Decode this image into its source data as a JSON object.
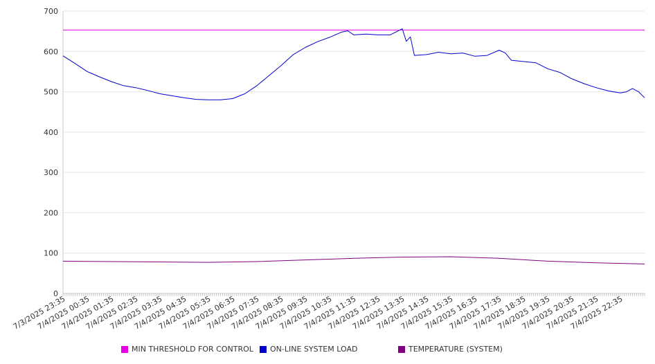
{
  "chart_data": {
    "type": "line",
    "ylim": [
      0,
      700
    ],
    "y_ticks": [
      "0",
      "100",
      "200",
      "300",
      "400",
      "500",
      "600",
      "700"
    ],
    "x_tick_labels": [
      "7/3/2025 23:35",
      "7/4/2025 00:35",
      "7/4/2025 01:35",
      "7/4/2025 02:35",
      "7/4/2025 03:35",
      "7/4/2025 04:35",
      "7/4/2025 05:35",
      "7/4/2025 06:35",
      "7/4/2025 07:35",
      "7/4/2025 08:35",
      "7/4/2025 09:35",
      "7/4/2025 10:35",
      "7/4/2025 11:35",
      "7/4/2025 12:35",
      "7/4/2025 13:35",
      "7/4/2025 14:35",
      "7/4/2025 15:35",
      "7/4/2025 16:35",
      "7/4/2025 17:35",
      "7/4/2025 18:35",
      "7/4/2025 19:35",
      "7/4/2025 20:35",
      "7/4/2025 21:35",
      "7/4/2025 22:35"
    ],
    "x_range": [
      "7/3/2025 23:35",
      "7/4/2025 23:35"
    ],
    "grid": "horizontal",
    "legend_position": "bottom",
    "series": [
      {
        "name": "MIN THRESHOLD FOR CONTROL",
        "color": "#e600e6",
        "points": [
          [
            "7/3/2025 23:35",
            653
          ],
          [
            "7/4/2025 23:35",
            653
          ]
        ]
      },
      {
        "name": "ON-LINE SYSTEM LOAD",
        "color": "#0000cc",
        "points": [
          [
            "7/3/2025 23:35",
            589
          ],
          [
            "7/4/2025 00:05",
            570
          ],
          [
            "7/4/2025 00:35",
            550
          ],
          [
            "7/4/2025 01:05",
            537
          ],
          [
            "7/4/2025 01:35",
            525
          ],
          [
            "7/4/2025 02:05",
            515
          ],
          [
            "7/4/2025 02:35",
            510
          ],
          [
            "7/4/2025 03:05",
            503
          ],
          [
            "7/4/2025 03:35",
            495
          ],
          [
            "7/4/2025 04:05",
            490
          ],
          [
            "7/4/2025 04:35",
            485
          ],
          [
            "7/4/2025 05:05",
            481
          ],
          [
            "7/4/2025 05:35",
            480
          ],
          [
            "7/4/2025 06:05",
            480
          ],
          [
            "7/4/2025 06:35",
            483
          ],
          [
            "7/4/2025 07:05",
            495
          ],
          [
            "7/4/2025 07:35",
            515
          ],
          [
            "7/4/2025 08:05",
            540
          ],
          [
            "7/4/2025 08:35",
            565
          ],
          [
            "7/4/2025 09:05",
            592
          ],
          [
            "7/4/2025 09:35",
            610
          ],
          [
            "7/4/2025 10:05",
            624
          ],
          [
            "7/4/2025 10:35",
            635
          ],
          [
            "7/4/2025 11:05",
            648
          ],
          [
            "7/4/2025 11:20",
            651
          ],
          [
            "7/4/2025 11:35",
            641
          ],
          [
            "7/4/2025 12:05",
            643
          ],
          [
            "7/4/2025 12:35",
            641
          ],
          [
            "7/4/2025 13:05",
            641
          ],
          [
            "7/4/2025 13:35",
            656
          ],
          [
            "7/4/2025 13:45",
            625
          ],
          [
            "7/4/2025 13:55",
            636
          ],
          [
            "7/4/2025 14:05",
            590
          ],
          [
            "7/4/2025 14:35",
            592
          ],
          [
            "7/4/2025 15:05",
            598
          ],
          [
            "7/4/2025 15:35",
            594
          ],
          [
            "7/4/2025 16:05",
            596
          ],
          [
            "7/4/2025 16:35",
            588
          ],
          [
            "7/4/2025 17:05",
            590
          ],
          [
            "7/4/2025 17:35",
            603
          ],
          [
            "7/4/2025 17:50",
            596
          ],
          [
            "7/4/2025 18:05",
            578
          ],
          [
            "7/4/2025 18:35",
            575
          ],
          [
            "7/4/2025 19:05",
            572
          ],
          [
            "7/4/2025 19:35",
            557
          ],
          [
            "7/4/2025 20:05",
            548
          ],
          [
            "7/4/2025 20:35",
            532
          ],
          [
            "7/4/2025 21:05",
            520
          ],
          [
            "7/4/2025 21:35",
            510
          ],
          [
            "7/4/2025 22:05",
            502
          ],
          [
            "7/4/2025 22:35",
            497
          ],
          [
            "7/4/2025 22:50",
            500
          ],
          [
            "7/4/2025 23:05",
            508
          ],
          [
            "7/4/2025 23:20",
            500
          ],
          [
            "7/4/2025 23:35",
            485
          ]
        ]
      },
      {
        "name": "TEMPERATURE (SYSTEM)",
        "color": "#800080",
        "points": [
          [
            "7/3/2025 23:35",
            80
          ],
          [
            "7/4/2025 01:35",
            79
          ],
          [
            "7/4/2025 03:35",
            78
          ],
          [
            "7/4/2025 05:35",
            77
          ],
          [
            "7/4/2025 07:35",
            79
          ],
          [
            "7/4/2025 09:35",
            83
          ],
          [
            "7/4/2025 11:35",
            87
          ],
          [
            "7/4/2025 13:35",
            90
          ],
          [
            "7/4/2025 15:35",
            91
          ],
          [
            "7/4/2025 17:35",
            87
          ],
          [
            "7/4/2025 19:35",
            80
          ],
          [
            "7/4/2025 21:35",
            76
          ],
          [
            "7/4/2025 23:35",
            73
          ]
        ]
      }
    ]
  }
}
